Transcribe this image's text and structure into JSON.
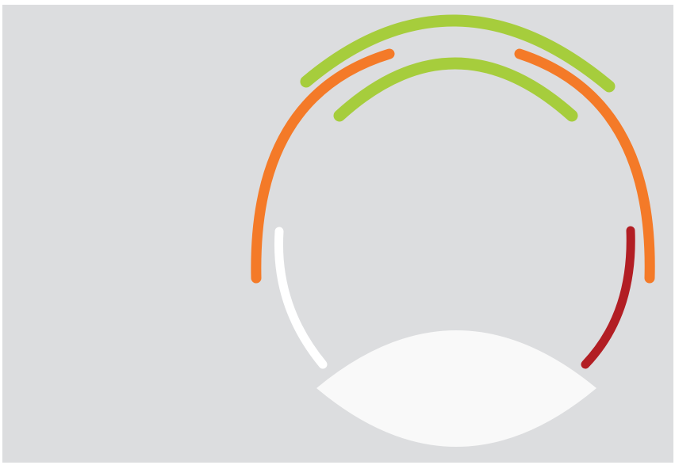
{
  "colors": {
    "background": "#dcdddf",
    "frame": "#ffffff",
    "green": "#a6cd3c",
    "orange": "#f47a28",
    "white": "#ffffff",
    "red": "#b21e24",
    "lens": "#f9f9f9"
  },
  "icon": "abstract-circular-gauge-icon"
}
